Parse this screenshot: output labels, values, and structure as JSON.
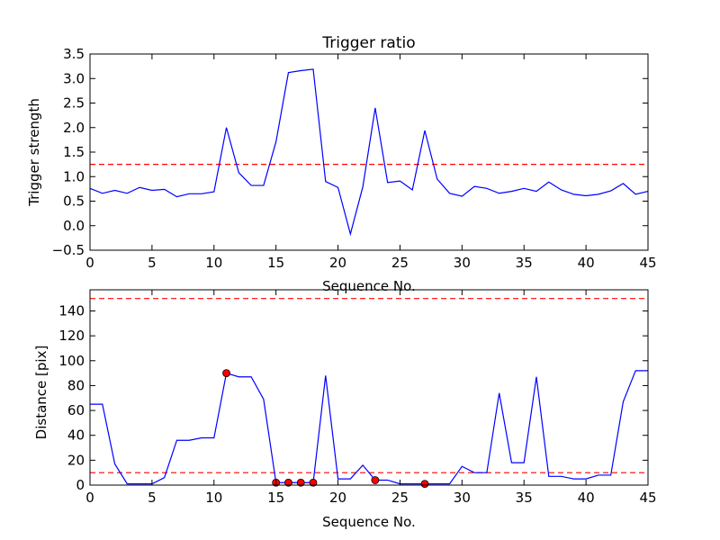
{
  "chart_data": [
    {
      "type": "line",
      "title": "Trigger ratio",
      "xlabel": "Sequence No.",
      "ylabel": "Trigger strength",
      "xlim": [
        0,
        45
      ],
      "ylim": [
        -0.5,
        3.5
      ],
      "xticks": [
        0,
        5,
        10,
        15,
        20,
        25,
        30,
        35,
        40,
        45
      ],
      "yticks": [
        -0.5,
        0.0,
        0.5,
        1.0,
        1.5,
        2.0,
        2.5,
        3.0,
        3.5
      ],
      "ytick_labels": [
        "−0.5",
        "0.0",
        "0.5",
        "1.0",
        "1.5",
        "2.0",
        "2.5",
        "3.0",
        "3.5"
      ],
      "grid": false,
      "series": [
        {
          "color": "#0000ff",
          "style": "solid",
          "x": [
            0,
            1,
            2,
            3,
            4,
            5,
            6,
            7,
            8,
            9,
            10,
            11,
            12,
            13,
            14,
            15,
            16,
            17,
            18,
            19,
            20,
            21,
            22,
            23,
            24,
            25,
            26,
            27,
            28,
            29,
            30,
            31,
            32,
            33,
            34,
            35,
            36,
            37,
            38,
            39,
            40,
            41,
            42,
            43,
            44,
            45
          ],
          "values": [
            0.76,
            0.66,
            0.72,
            0.66,
            0.78,
            0.72,
            0.74,
            0.59,
            0.65,
            0.65,
            0.69,
            2.0,
            1.08,
            0.82,
            0.82,
            1.71,
            3.12,
            3.16,
            3.19,
            0.9,
            0.78,
            -0.17,
            0.79,
            2.4,
            0.88,
            0.91,
            0.73,
            1.94,
            0.95,
            0.66,
            0.6,
            0.8,
            0.76,
            0.66,
            0.7,
            0.76,
            0.7,
            0.89,
            0.73,
            0.64,
            0.61,
            0.64,
            0.71,
            0.86,
            0.64,
            0.7
          ]
        }
      ],
      "reference_lines": [
        {
          "y": 1.25,
          "color": "#ff0000",
          "style": "dashed"
        }
      ]
    },
    {
      "type": "line",
      "title": "",
      "xlabel": "Sequence No.",
      "ylabel": "Distance [pix]",
      "xlim": [
        0,
        45
      ],
      "ylim": [
        0,
        157
      ],
      "xticks": [
        0,
        5,
        10,
        15,
        20,
        25,
        30,
        35,
        40,
        45
      ],
      "yticks": [
        0,
        20,
        40,
        60,
        80,
        100,
        120,
        140
      ],
      "ytick_labels": [
        "0",
        "20",
        "40",
        "60",
        "80",
        "100",
        "120",
        "140"
      ],
      "grid": false,
      "series": [
        {
          "color": "#0000ff",
          "style": "solid",
          "x": [
            0,
            1,
            2,
            3,
            4,
            5,
            6,
            7,
            8,
            9,
            10,
            11,
            12,
            13,
            14,
            15,
            16,
            17,
            18,
            19,
            20,
            21,
            22,
            23,
            24,
            25,
            26,
            27,
            28,
            29,
            30,
            31,
            32,
            33,
            34,
            35,
            36,
            37,
            38,
            39,
            40,
            41,
            42,
            43,
            44,
            45
          ],
          "values": [
            65,
            65,
            17,
            1,
            1,
            1,
            6,
            36,
            36,
            38,
            38,
            90,
            87,
            87,
            69,
            2,
            2,
            2,
            2,
            88,
            5,
            5,
            16,
            4,
            4,
            1,
            1,
            1,
            1,
            1,
            15,
            10,
            10,
            74,
            18,
            18,
            87,
            7,
            7,
            5,
            5,
            8,
            8,
            67,
            92,
            92
          ]
        },
        {
          "type": "scatter",
          "color": "#ff0000",
          "x": [
            11,
            15,
            16,
            17,
            18,
            23,
            27
          ],
          "values": [
            90,
            2,
            2,
            2,
            2,
            4,
            1
          ]
        }
      ],
      "reference_lines": [
        {
          "y": 150,
          "color": "#ff0000",
          "style": "dashed"
        },
        {
          "y": 10,
          "color": "#ff0000",
          "style": "dashed"
        }
      ]
    }
  ]
}
